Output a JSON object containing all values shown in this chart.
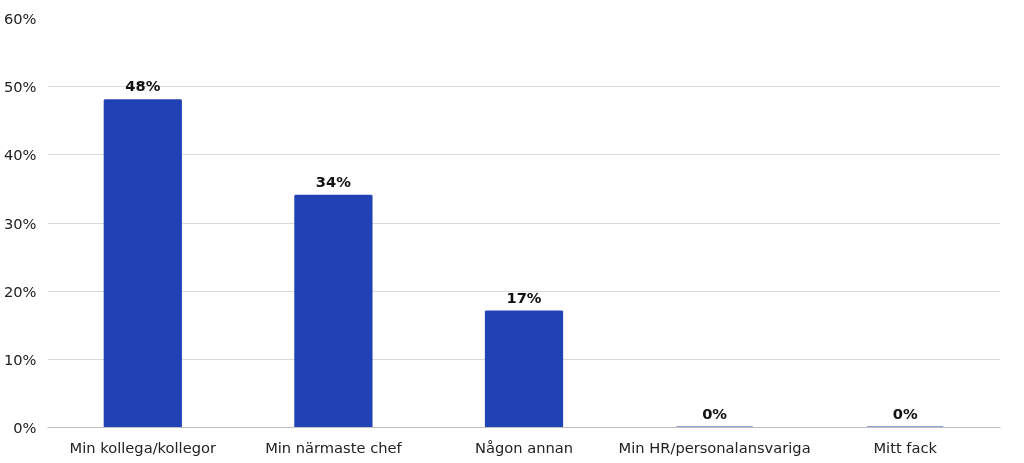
{
  "chart_data": {
    "type": "bar",
    "categories": [
      "Min kollega/kollegor",
      "Min närmaste chef",
      "Någon annan",
      "Min HR/personalansvariga",
      "Mitt fack"
    ],
    "values": [
      48,
      34,
      17,
      0,
      0
    ],
    "color": "#2142b4",
    "value_labels": [
      "48%",
      "34%",
      "17%",
      "0%",
      "0%"
    ],
    "ylim": [
      0,
      60
    ],
    "yticks": [
      {
        "value": 0,
        "label": "0%"
      },
      {
        "value": 10,
        "label": "10%"
      },
      {
        "value": 20,
        "label": "20%"
      },
      {
        "value": 30,
        "label": "30%"
      },
      {
        "value": 40,
        "label": "40%"
      },
      {
        "value": 50,
        "label": "50%"
      },
      {
        "value": 60,
        "label": "60%"
      }
    ],
    "grid": "y"
  }
}
